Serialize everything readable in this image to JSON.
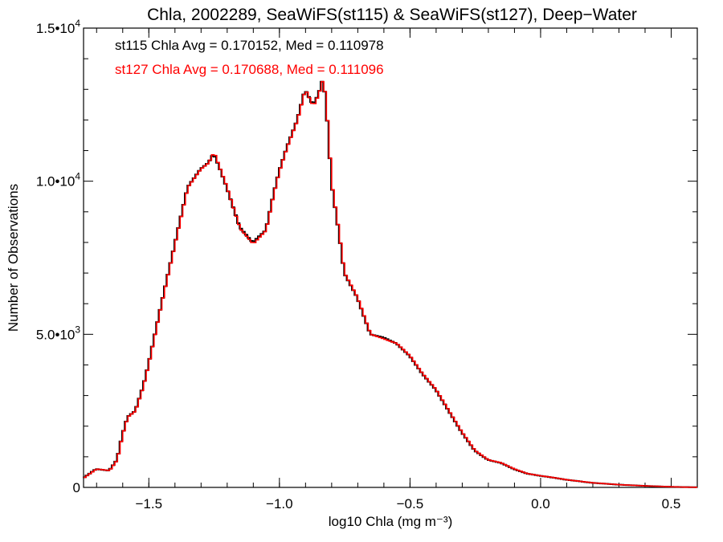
{
  "chart_data": {
    "type": "line",
    "title": "Chla, 2002289, SeaWiFS(st115) & SeaWiFS(st127), Deep−Water",
    "xlabel": "log10 Chla (mg m⁻³)",
    "ylabel": "Number of Observations",
    "xlim": [
      -1.75,
      0.6
    ],
    "ylim": [
      0,
      15000
    ],
    "xticks": [
      -1.5,
      -1.0,
      -0.5,
      0.0,
      0.5
    ],
    "xtick_labels": [
      "−1.5",
      "−1.0",
      "−0.5",
      "0.0",
      "0.5"
    ],
    "yticks": [
      0,
      5000,
      10000,
      15000
    ],
    "ytick_labels": [
      {
        "base": "0",
        "exp": ""
      },
      {
        "base": "5.0•10",
        "exp": "3"
      },
      {
        "base": "1.0•10",
        "exp": "4"
      },
      {
        "base": "1.5•10",
        "exp": "4"
      }
    ],
    "annotations": [
      {
        "text": "st115 Chla Avg = 0.170152, Med = 0.110978",
        "color": "#000000"
      },
      {
        "text": "st127 Chla Avg = 0.170688, Med = 0.111096",
        "color": "#ff0000"
      }
    ],
    "grid": false,
    "step_width": 0.01,
    "x": [
      -1.75,
      -1.7,
      -1.65,
      -1.62,
      -1.6,
      -1.58,
      -1.55,
      -1.52,
      -1.5,
      -1.45,
      -1.4,
      -1.35,
      -1.3,
      -1.27,
      -1.25,
      -1.23,
      -1.2,
      -1.15,
      -1.1,
      -1.05,
      -1.02,
      -1.0,
      -0.97,
      -0.93,
      -0.9,
      -0.87,
      -0.85,
      -0.83,
      -0.81,
      -0.8,
      -0.77,
      -0.75,
      -0.7,
      -0.65,
      -0.6,
      -0.55,
      -0.5,
      -0.45,
      -0.4,
      -0.35,
      -0.3,
      -0.25,
      -0.2,
      -0.15,
      -0.1,
      -0.05,
      0.0,
      0.05,
      0.1,
      0.2,
      0.3,
      0.4,
      0.5,
      0.55,
      0.6
    ],
    "series": [
      {
        "name": "st115",
        "color": "#000000",
        "values": [
          300,
          600,
          550,
          900,
          1700,
          2300,
          2500,
          3300,
          4000,
          6000,
          7900,
          9800,
          10400,
          10600,
          10900,
          10500,
          9800,
          8500,
          8000,
          8400,
          9600,
          10300,
          11100,
          12000,
          13000,
          12500,
          12800,
          13400,
          11500,
          10000,
          8300,
          7000,
          6200,
          5000,
          4900,
          4700,
          4300,
          3700,
          3200,
          2500,
          1800,
          1200,
          900,
          800,
          600,
          450,
          380,
          320,
          250,
          150,
          90,
          50,
          20,
          10,
          5
        ]
      },
      {
        "name": "st127",
        "color": "#ff0000",
        "values": [
          300,
          600,
          550,
          900,
          1700,
          2300,
          2500,
          3300,
          4000,
          6000,
          7900,
          9800,
          10400,
          10600,
          10950,
          10500,
          9800,
          8450,
          7950,
          8400,
          9600,
          10300,
          11100,
          12000,
          13000,
          12450,
          12800,
          13400,
          11500,
          10000,
          8300,
          7000,
          6200,
          5000,
          4850,
          4700,
          4300,
          3700,
          3200,
          2500,
          1800,
          1200,
          900,
          800,
          600,
          450,
          380,
          320,
          250,
          150,
          90,
          50,
          20,
          10,
          5
        ]
      }
    ]
  }
}
